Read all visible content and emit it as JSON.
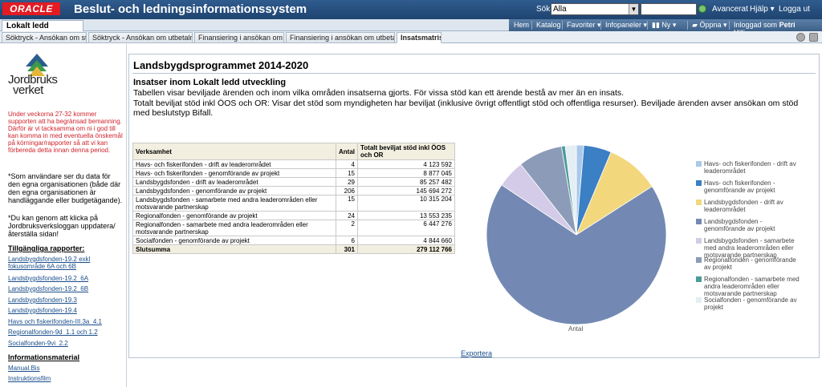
{
  "header": {
    "logo": "ORACLE",
    "title": "Beslut- och ledningsinformationssystem",
    "search_label": "Sök",
    "search_scope": "Alla",
    "search_value": "",
    "advanced": "Avancerat",
    "help": "Hjälp",
    "logout": "Logga ut"
  },
  "dashboard_tab": "Lokalt ledd utveckling",
  "nav": {
    "home": "Hem",
    "catalog": "Katalog",
    "favorites": "Favoriter",
    "dashboards": "Infopaneler",
    "new": "Ny",
    "open": "Öppna",
    "signed_in_label": "Inloggad som",
    "user": "Petri Hiljanen"
  },
  "tabs": [
    {
      "label": "Söktryck - Ansökan om stöd"
    },
    {
      "label": "Söktryck - Ansökan om utbetalning"
    },
    {
      "label": "Finansiering i ansökan om stöd"
    },
    {
      "label": "Finansiering i ansökan om utbetalning"
    },
    {
      "label": "Insatsmatris"
    }
  ],
  "sidebar": {
    "logo_line1": "Jordbruks",
    "logo_line2": "verket",
    "red_note": "Under veckorna 27-32 kommer supporten att ha begränsad bemanning. Därför är vi tacksamma om ni i god till kan komma in med eventuella önskemål på körningar/rapporter så att vi kan förbereda detta innan denna period.",
    "note1": "*Som användare ser du data för den egna organisationen (både där den egna organisationen är handläggande eller budgetägande).",
    "note2": "*Du kan genom att klicka på Jordbruksverksloggan uppdatera/återställa sidan!",
    "reports_heading": "Tillgängliga rapporter:",
    "reports": [
      "Landsbygdsfonden-19.2 exkl fokusområde 6A och 6B",
      "Landsbygdsfonden-19.2_6A",
      "Landsbygdsfonden-19.2_6B",
      "Landsbygdsfonden-19.3",
      "Landsbygdsfonden-19.4",
      "Havs och fiskerifonden-III.3a_4.1",
      "Regionalfonden-9d_1.1 och 1.2",
      "Socialfonden-9vi_2.2"
    ],
    "info_heading": "Informationsmaterial",
    "info_links": [
      "Manual.Bis",
      "Instruktionsfilm"
    ]
  },
  "main": {
    "title": "Landsbygdsprogrammet 2014-2020",
    "subtitle": "Insatser inom Lokalt ledd utveckling",
    "desc1": "Tabellen visar beviljade ärenden och inom vilka områden insatserna gjorts. För vissa stöd kan ett ärende bestå av mer än en insats.",
    "desc2": "Totalt beviljat stöd inkl ÖOS och OR: Visar det stöd som myndigheten har beviljat (inklusive övrigt offentligt stöd och offentliga resurser). Beviljade ärenden avser ansökan om stöd med beslutstyp Bifall.",
    "export": "Exportera"
  },
  "table": {
    "headers": [
      "Verksamhet",
      "Antal",
      "Totalt beviljat stöd inkl ÖOS och OR"
    ],
    "rows": [
      [
        "Havs- och fiskerifonden - drift av leaderområdet",
        "4",
        "4 123 592"
      ],
      [
        "Havs- och fiskerifonden - genomförande av projekt",
        "15",
        "8 877 045"
      ],
      [
        "Landsbygdsfonden - drift av leaderområdet",
        "29",
        "85 257 482"
      ],
      [
        "Landsbygdsfonden - genomförande av projekt",
        "206",
        "145 694 272"
      ],
      [
        "Landsbygdsfonden - samarbete med andra leaderområden eller motsvarande partnerskap",
        "15",
        "10 315 204"
      ],
      [
        "Regionalfonden - genomförande av projekt",
        "24",
        "13 553 235"
      ],
      [
        "Regionalfonden - samarbete med andra leaderområden eller motsvarande partnerskap",
        "2",
        "6 447 276"
      ],
      [
        "Socialfonden - genomförande av projekt",
        "6",
        "4 844 660"
      ]
    ],
    "total": [
      "Slutsumma",
      "301",
      "279 112 766"
    ]
  },
  "chart_data": {
    "type": "pie",
    "xlabel": "Antal",
    "categories": [
      "Havs- och fiskerifonden - drift av leaderområdet",
      "Havs- och fiskerifonden - genomförande av projekt",
      "Landsbygdsfonden - drift av leaderområdet",
      "Landsbygdsfonden - genomförande av projekt",
      "Landsbygdsfonden - samarbete med andra leaderområden eller motsvarande partnerskap",
      "Regionalfonden - genomförande av projekt",
      "Regionalfonden - samarbete med andra leaderområden eller motsvarande partnerskap",
      "Socialfonden - genomförande av projekt"
    ],
    "values": [
      4,
      15,
      29,
      206,
      15,
      24,
      2,
      6
    ],
    "colors": [
      "#a9c8ea",
      "#3b7fc4",
      "#f2d77c",
      "#7389b3",
      "#d3cbe7",
      "#8c9bb8",
      "#4b9c9a",
      "#e4eef4"
    ],
    "legend_position": "right"
  }
}
